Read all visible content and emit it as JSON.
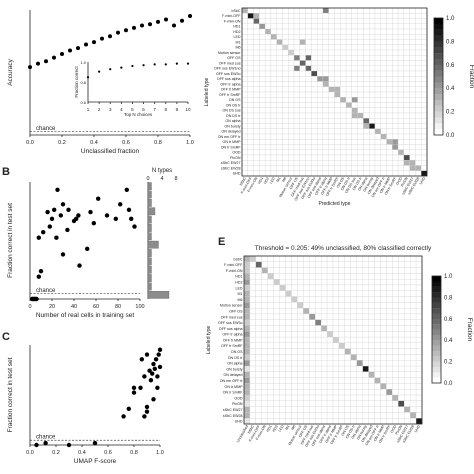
{
  "colors": {
    "marker": "#000000",
    "axis": "#222222",
    "chance": "#444444",
    "hist": "#8c8c8c"
  },
  "chart_data": [
    {
      "id": "A-main",
      "type": "scatter",
      "xlabel": "Unclassified fraction",
      "ylabel": "Accuracy",
      "xticks": [
        "0.0",
        "0.2",
        "0.4",
        "0.6",
        "0.8",
        "1.0"
      ],
      "xlim": [
        0,
        1
      ],
      "ylim": [
        0,
        1.05
      ],
      "chance_label": "chance",
      "chance_y": 0.03,
      "x": [
        0.0,
        0.05,
        0.1,
        0.15,
        0.2,
        0.25,
        0.3,
        0.35,
        0.4,
        0.45,
        0.5,
        0.55,
        0.6,
        0.65,
        0.7,
        0.75,
        0.8,
        0.85,
        0.9,
        0.95,
        1.0
      ],
      "y": [
        0.57,
        0.6,
        0.62,
        0.65,
        0.68,
        0.71,
        0.73,
        0.76,
        0.78,
        0.81,
        0.83,
        0.86,
        0.88,
        0.9,
        0.92,
        0.93,
        0.95,
        0.97,
        0.92,
        0.96,
        1.0
      ]
    },
    {
      "id": "A-inset",
      "type": "scatter",
      "xlabel": "Top N choices",
      "ylabel": "Fraction correct",
      "xticks": [
        "1",
        "2",
        "3",
        "4",
        "5",
        "6",
        "7",
        "8",
        "9",
        "10"
      ],
      "yticks": [
        "1.0",
        "0.8",
        "0.6"
      ],
      "xlim": [
        1,
        10
      ],
      "ylim": [
        0.5,
        1.0
      ],
      "x": [
        1,
        2,
        3,
        4,
        5,
        6,
        7,
        8,
        9,
        10
      ],
      "y": [
        0.81,
        0.88,
        0.91,
        0.93,
        0.95,
        0.96,
        0.97,
        0.97,
        0.98,
        0.98
      ]
    },
    {
      "id": "B",
      "type": "scatter",
      "xlabel": "Number of real cells in training set",
      "ylabel": "Fraction correct in test set",
      "xticks": [
        "0",
        "20",
        "40",
        "60",
        "80",
        "100"
      ],
      "xlim": [
        0,
        100
      ],
      "ylim": [
        0,
        1.05
      ],
      "chance_label": "chance",
      "chance_y": 0.05,
      "x": [
        2,
        3,
        4,
        5,
        6,
        8,
        10,
        8,
        12,
        16,
        18,
        20,
        22,
        24,
        25,
        28,
        30,
        30,
        34,
        35,
        40,
        42,
        44,
        45,
        52,
        55,
        58,
        62,
        70,
        78,
        82,
        88,
        90,
        92,
        95
      ],
      "y": [
        0,
        0,
        0,
        0,
        0,
        0.2,
        0.25,
        0.55,
        0.6,
        0.78,
        0.65,
        0.72,
        0.8,
        0.55,
        0.98,
        0.75,
        0.85,
        0.4,
        0.62,
        0.8,
        0.7,
        0.72,
        0.75,
        0.3,
        0.45,
        0.78,
        0.68,
        0.9,
        0.75,
        0.72,
        0.85,
        0.98,
        0.8,
        0.72,
        0.65
      ]
    },
    {
      "id": "B-hist",
      "type": "bar",
      "xlabel": "N types",
      "xticks": [
        "0",
        "4",
        "8"
      ],
      "values": [
        1,
        1,
        1,
        2,
        1,
        1,
        1,
        3,
        1,
        1,
        1,
        1,
        1,
        6
      ]
    },
    {
      "id": "C",
      "type": "scatter",
      "xlabel": "UMAP F-score",
      "ylabel": "Fraction correct in test set",
      "xticks": [
        "0.0",
        "0.2",
        "0.4",
        "0.6",
        "0.8",
        "1.0"
      ],
      "xlim": [
        0,
        1
      ],
      "ylim": [
        0,
        1.05
      ],
      "chance_label": "chance",
      "chance_y": 0.05,
      "x": [
        0.05,
        0.12,
        0.3,
        0.5,
        0.72,
        0.76,
        0.8,
        0.8,
        0.85,
        0.86,
        0.88,
        0.9,
        0.9,
        0.92,
        0.93,
        0.94,
        0.95,
        0.96,
        0.97,
        0.98,
        0.98,
        0.99,
        1.0,
        1.0,
        0.88,
        0.9,
        0.95
      ],
      "y": [
        0,
        0.02,
        0,
        0.02,
        0.3,
        0.38,
        0.55,
        0.6,
        0.6,
        0.9,
        0.72,
        0.95,
        0.4,
        0.78,
        0.68,
        0.75,
        0.85,
        0.8,
        0.9,
        0.6,
        0.72,
        0.95,
        1.0,
        0.82,
        0.3,
        0.35,
        0.48
      ]
    },
    {
      "id": "D",
      "type": "heatmap",
      "xlabel": "Predicted type",
      "ylabel": "Labeled type",
      "colorbar_label": "Fraction",
      "colorbar_ticks": [
        "1.0",
        "0.8",
        "0.6",
        "0.4",
        "0.2",
        "0.0"
      ],
      "row_labels": [
        "bSbC",
        "F-mini-OFF",
        "F-mini-ON",
        "HD1",
        "HD2",
        "LED",
        "M1",
        "M6",
        "Motion sensor",
        "OFF OS",
        "OFF med sus",
        "OFF sus EW1no",
        "OFF sus EW3o",
        "OFF sus alpha",
        "OFF tr alpha",
        "OFF tr MMP",
        "OFF tr SmRF",
        "ON OS",
        "ON OS tr",
        "ON DS sus",
        "ON DS tr",
        "ON alpha",
        "ON bursty",
        "ON delayed",
        "ON em OFF tr",
        "ON tr MMP",
        "ON tr SmRF",
        "OOD",
        "PixON",
        "sSbC EW27",
        "sSbC EW28",
        "UHD"
      ],
      "col_labels": [
        "bSbC",
        "F-mini-OFF",
        "F-mini-ON",
        "HD1",
        "HD2",
        "LED",
        "M1",
        "M6",
        "Motion sensor",
        "OFF OS",
        "OFF med sus",
        "OFF sus EW1no",
        "OFF sus EW3o",
        "OFF sus alpha",
        "OFF tr alpha",
        "OFF tr MMP",
        "OFF tr SmRF",
        "ON OS",
        "ON OS tr",
        "ON DS sus",
        "ON DS tr",
        "ON alpha",
        "ON bursty",
        "ON delayed",
        "ON em OFF tr",
        "ON tr MMP",
        "ON tr SmRF",
        "OOD",
        "PixON",
        "sSbC EW27",
        "sSbC EW28",
        "UHD"
      ],
      "diagonal": [
        0.3,
        0.9,
        0.6,
        0.4,
        0.3,
        0.3,
        0.3,
        0.2,
        0.2,
        0.5,
        0.6,
        0.6,
        0.7,
        0.4,
        0.3,
        0.3,
        0.3,
        0.3,
        0.3,
        0.3,
        0.3,
        0.6,
        0.9,
        0.3,
        0.3,
        0.3,
        0.4,
        0.3,
        0.7,
        0.3,
        0.3,
        0.9
      ],
      "offdiag": [
        [
          0,
          14,
          0.5
        ],
        [
          1,
          2,
          0.3
        ],
        [
          9,
          11,
          0.6
        ],
        [
          11,
          9,
          0.5
        ],
        [
          13,
          14,
          0.4
        ],
        [
          17,
          19,
          0.4
        ],
        [
          20,
          19,
          0.3
        ],
        [
          22,
          21,
          0.3
        ],
        [
          25,
          26,
          0.4
        ],
        [
          29,
          28,
          0.3
        ],
        [
          30,
          29,
          0.3
        ],
        [
          6,
          10,
          0.3
        ],
        [
          15,
          16,
          0.3
        ]
      ]
    },
    {
      "id": "E",
      "type": "heatmap",
      "title": "Threshold = 0.205: 49% unclassified, 80% classified correctly",
      "ylabel": "Labeled type",
      "colorbar_label": "Fraction",
      "colorbar_ticks": [
        "1.0",
        "0.8",
        "0.6",
        "0.4",
        "0.2",
        "0.0"
      ],
      "row_labels": [
        "bSbC",
        "F-mini-OFF",
        "F-mini-ON",
        "HD1",
        "HD2",
        "LED",
        "M1",
        "M6",
        "Motion sensor",
        "OFF OS",
        "OFF med sus",
        "OFF sus EW3o",
        "OFF sus alpha",
        "OFF tr alpha",
        "OFF tr MMP",
        "OFF tr SmRF",
        "ON OS",
        "ON OS tr",
        "ON alpha",
        "ON bursty",
        "ON delayed",
        "ON em OFF tr",
        "ON tr MMP",
        "ON tr SmRF",
        "OOD",
        "PixON",
        "sSbC EW27",
        "sSbC EW28",
        "UHD"
      ],
      "col_labels": [
        "Unclassified",
        "bSbC",
        "F-mini-OFF",
        "F-mini-ON",
        "HD1",
        "HD2",
        "LED",
        "M1",
        "M6",
        "Motion sensor",
        "OFF OS",
        "OFF med sus",
        "OFF sus EW3o",
        "OFF sus alpha",
        "OFF tr alpha",
        "OFF tr MMP",
        "OFF tr SmRF",
        "ON OS",
        "ON OS tr",
        "ON alpha",
        "ON bursty",
        "ON delayed",
        "ON em OFF tr",
        "ON tr MMP",
        "ON tr SmRF",
        "OOD",
        "PixON",
        "sSbC EW27",
        "sSbC EW28",
        "UHD"
      ],
      "diagonal": [
        0.2,
        0.6,
        0.3,
        0.2,
        0.2,
        0.2,
        0.2,
        0.2,
        0.2,
        0.3,
        0.4,
        0.5,
        0.3,
        0.2,
        0.2,
        0.2,
        0.3,
        0.3,
        0.4,
        0.9,
        0.3,
        0.3,
        0.3,
        0.4,
        0.3,
        0.7,
        0.3,
        0.3,
        0.9
      ],
      "unclassified": [
        0.3,
        0.2,
        0.2,
        0.3,
        0.4,
        0.2,
        0.3,
        0.3,
        0.4,
        0.3,
        0.3,
        0.2,
        0.3,
        0.4,
        0.3,
        0.3,
        0.3,
        0.2,
        0.4,
        0.1,
        0.3,
        0.4,
        0.3,
        0.3,
        0.2,
        0.1,
        0.3,
        0.3,
        0.1
      ]
    }
  ],
  "panels": {
    "B": "B",
    "C": "C",
    "E": "E"
  }
}
